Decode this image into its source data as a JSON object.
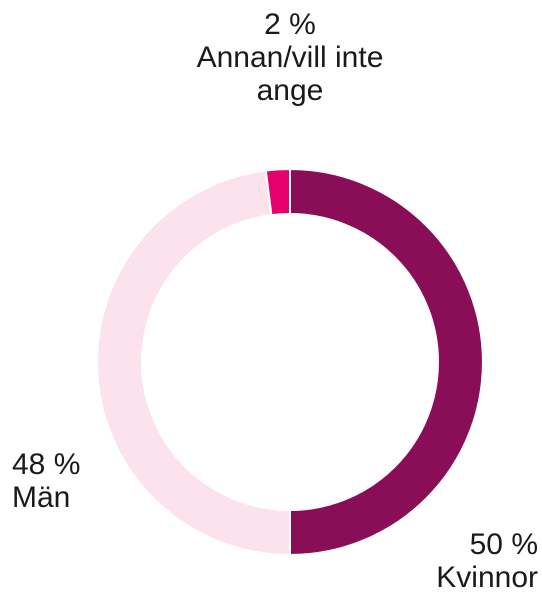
{
  "chart_data": {
    "type": "donut",
    "categories": [
      "Kvinnor",
      "Män",
      "Annan/vill inte ange"
    ],
    "values": [
      50,
      48,
      2
    ],
    "value_labels": [
      "50 %",
      "48 %",
      "2 %"
    ],
    "colors": [
      "#8a0d57",
      "#fbe2ec",
      "#e5006e"
    ]
  }
}
